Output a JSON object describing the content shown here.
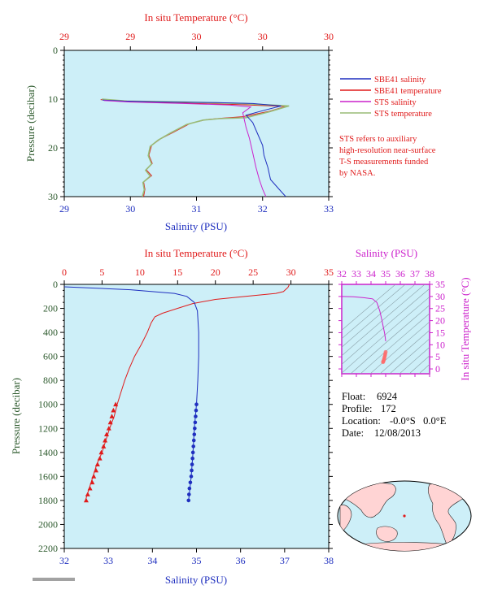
{
  "colors": {
    "salinity": "#1f2fbf",
    "temperature": "#e01b1b",
    "sts_salinity": "#cc22cc",
    "sts_temperature": "#99bb77",
    "pressure_axis": "#2d5a2d",
    "plot_bg": "#cdeff8",
    "magenta": "#cc22cc"
  },
  "chart_data": [
    {
      "type": "line",
      "title": "In situ Temperature (°C)",
      "xlabel": "Salinity (PSU)",
      "ylabel": "Pressure (decibar)",
      "top_xlabel": "In situ Temperature (°C)",
      "xlim": [
        29,
        33
      ],
      "ylim": [
        30,
        0
      ],
      "x_ticks": [
        "29",
        "30",
        "31",
        "32",
        "33"
      ],
      "top_ticks": [
        "29",
        "29",
        "30",
        "30",
        "30"
      ],
      "y_ticks": [
        "0",
        "10",
        "20",
        "30"
      ],
      "legend_position": "right",
      "series": [
        {
          "name": "SBE41 salinity",
          "points": [
            [
              29.58,
              10.2
            ],
            [
              29.9,
              10.4
            ],
            [
              30.6,
              10.6
            ],
            [
              31.3,
              10.7
            ],
            [
              31.85,
              10.9
            ],
            [
              32.28,
              11.4
            ],
            [
              32.05,
              12.2
            ],
            [
              31.75,
              13.3
            ],
            [
              31.85,
              14.8
            ],
            [
              31.92,
              17.0
            ],
            [
              32.0,
              19.5
            ],
            [
              32.02,
              21.5
            ],
            [
              32.08,
              24.0
            ],
            [
              32.12,
              26.5
            ],
            [
              32.25,
              28.5
            ],
            [
              32.35,
              30.0
            ]
          ]
        },
        {
          "name": "SBE41 temperature",
          "points": [
            [
              29.55,
              10.1
            ],
            [
              29.9,
              10.5
            ],
            [
              30.7,
              10.8
            ],
            [
              31.6,
              11.1
            ],
            [
              32.35,
              11.5
            ],
            [
              32.1,
              12.5
            ],
            [
              31.7,
              13.6
            ],
            [
              31.4,
              13.9
            ],
            [
              31.15,
              14.2
            ],
            [
              30.9,
              15.0
            ],
            [
              30.65,
              16.8
            ],
            [
              30.45,
              18.2
            ],
            [
              30.32,
              19.5
            ],
            [
              30.28,
              21.5
            ],
            [
              30.33,
              23.2
            ],
            [
              30.24,
              24.5
            ],
            [
              30.32,
              25.7
            ],
            [
              30.2,
              27.0
            ],
            [
              30.22,
              28.5
            ],
            [
              30.2,
              30.0
            ]
          ]
        },
        {
          "name": "STS salinity",
          "points": [
            [
              29.6,
              10.3
            ],
            [
              30.0,
              10.6
            ],
            [
              30.8,
              10.9
            ],
            [
              31.5,
              11.2
            ],
            [
              31.82,
              11.6
            ],
            [
              31.7,
              12.8
            ],
            [
              31.72,
              14.0
            ],
            [
              31.75,
              15.8
            ],
            [
              31.8,
              18.0
            ],
            [
              31.85,
              21.0
            ],
            [
              31.9,
              24.0
            ],
            [
              31.95,
              26.5
            ],
            [
              32.0,
              28.5
            ],
            [
              32.05,
              30.0
            ]
          ]
        },
        {
          "name": "STS temperature",
          "points": [
            [
              29.57,
              10.0
            ],
            [
              29.95,
              10.4
            ],
            [
              30.8,
              10.6
            ],
            [
              31.7,
              10.9
            ],
            [
              32.4,
              11.4
            ],
            [
              32.1,
              12.6
            ],
            [
              31.75,
              13.8
            ],
            [
              31.35,
              14.0
            ],
            [
              31.1,
              14.3
            ],
            [
              30.85,
              15.2
            ],
            [
              30.6,
              17.0
            ],
            [
              30.42,
              18.4
            ],
            [
              30.3,
              19.7
            ],
            [
              30.27,
              21.6
            ],
            [
              30.32,
              23.3
            ],
            [
              30.23,
              24.6
            ],
            [
              30.3,
              25.8
            ],
            [
              30.19,
              27.1
            ],
            [
              30.21,
              28.6
            ],
            [
              30.18,
              30.0
            ]
          ]
        }
      ],
      "note_lines": [
        "STS refers to auxiliary",
        "high-resolution near-surface",
        "T-S measurements funded",
        "by NASA."
      ]
    },
    {
      "type": "line",
      "title": "In situ Temperature (°C)",
      "xlabel": "Salinity (PSU)",
      "ylabel": "Pressure (decibar)",
      "top_xlabel": "In situ Temperature (°C)",
      "xlim": [
        32,
        38
      ],
      "top_xlim": [
        0,
        35
      ],
      "ylim": [
        2200,
        0
      ],
      "x_ticks": [
        "32",
        "33",
        "34",
        "35",
        "36",
        "37",
        "38"
      ],
      "top_ticks": [
        "0",
        "5",
        "10",
        "15",
        "20",
        "25",
        "30",
        "35"
      ],
      "y_ticks": [
        "0",
        "200",
        "400",
        "600",
        "800",
        "1000",
        "1200",
        "1400",
        "1600",
        "1800",
        "2000",
        "2200"
      ],
      "salinity_points": [
        [
          32.0,
          20
        ],
        [
          33.5,
          45
        ],
        [
          34.5,
          75
        ],
        [
          34.78,
          100
        ],
        [
          34.95,
          150
        ],
        [
          35.02,
          220
        ],
        [
          35.05,
          400
        ],
        [
          35.05,
          600
        ],
        [
          35.03,
          800
        ],
        [
          35.0,
          1000
        ],
        [
          34.95,
          1200
        ],
        [
          34.92,
          1400
        ],
        [
          34.88,
          1600
        ],
        [
          34.82,
          1800
        ]
      ],
      "salinity_markers": [
        [
          35.0,
          1000
        ],
        [
          34.99,
          1050
        ],
        [
          34.98,
          1100
        ],
        [
          34.97,
          1150
        ],
        [
          34.96,
          1200
        ],
        [
          34.95,
          1250
        ],
        [
          34.94,
          1300
        ],
        [
          34.93,
          1350
        ],
        [
          34.92,
          1400
        ],
        [
          34.91,
          1450
        ],
        [
          34.9,
          1500
        ],
        [
          34.89,
          1550
        ],
        [
          34.88,
          1600
        ],
        [
          34.86,
          1650
        ],
        [
          34.84,
          1700
        ],
        [
          34.83,
          1750
        ],
        [
          34.82,
          1800
        ]
      ],
      "temperature_points": [
        [
          29.8,
          0
        ],
        [
          29.6,
          25
        ],
        [
          29.0,
          60
        ],
        [
          28.0,
          75
        ],
        [
          24.0,
          100
        ],
        [
          20.0,
          125
        ],
        [
          17.0,
          160
        ],
        [
          15.0,
          200
        ],
        [
          13.0,
          240
        ],
        [
          12.0,
          270
        ],
        [
          11.5,
          320
        ],
        [
          11.0,
          400
        ],
        [
          10.2,
          500
        ],
        [
          9.3,
          600
        ],
        [
          8.6,
          700
        ],
        [
          8.0,
          800
        ],
        [
          7.5,
          900
        ],
        [
          7.0,
          1000
        ],
        [
          6.6,
          1100
        ],
        [
          6.0,
          1200
        ],
        [
          5.5,
          1300
        ],
        [
          5.0,
          1400
        ],
        [
          4.3,
          1500
        ],
        [
          3.8,
          1600
        ],
        [
          3.3,
          1700
        ],
        [
          2.8,
          1800
        ]
      ],
      "temperature_markers": [
        [
          6.8,
          1000
        ],
        [
          6.5,
          1050
        ],
        [
          6.3,
          1100
        ],
        [
          6.1,
          1150
        ],
        [
          5.9,
          1200
        ],
        [
          5.6,
          1250
        ],
        [
          5.4,
          1300
        ],
        [
          5.2,
          1350
        ],
        [
          4.9,
          1400
        ],
        [
          4.7,
          1450
        ],
        [
          4.4,
          1500
        ],
        [
          4.2,
          1550
        ],
        [
          3.9,
          1600
        ],
        [
          3.7,
          1650
        ],
        [
          3.4,
          1700
        ],
        [
          3.1,
          1750
        ],
        [
          2.9,
          1800
        ]
      ]
    },
    {
      "type": "scatter",
      "title": "Salinity (PSU)",
      "ylabel": "In situ Temperature (°C)",
      "xlim": [
        32,
        38
      ],
      "ylim": [
        -2,
        35
      ],
      "x_ticks": [
        "32",
        "33",
        "34",
        "35",
        "36",
        "37",
        "38"
      ],
      "y_ticks": [
        "0",
        "5",
        "10",
        "15",
        "20",
        "25",
        "30",
        "35"
      ],
      "ts_curve": [
        [
          32.0,
          30.0
        ],
        [
          32.8,
          29.9
        ],
        [
          33.5,
          29.5
        ],
        [
          34.1,
          29.0
        ],
        [
          34.4,
          27.5
        ],
        [
          34.6,
          24.0
        ],
        [
          34.75,
          20.0
        ],
        [
          34.85,
          17.0
        ],
        [
          34.92,
          15.0
        ],
        [
          34.97,
          13.0
        ],
        [
          35.0,
          11.5
        ]
      ],
      "ts_markers": [
        [
          35.0,
          7.0
        ],
        [
          34.97,
          6.2
        ],
        [
          34.95,
          5.5
        ],
        [
          34.92,
          4.8
        ],
        [
          34.9,
          4.2
        ],
        [
          34.87,
          3.6
        ],
        [
          34.84,
          3.1
        ],
        [
          34.82,
          2.8
        ]
      ]
    }
  ],
  "info": {
    "float_label": "Float:",
    "float_value": "6924",
    "profile_label": "Profile:",
    "profile_value": "172",
    "location_label": "Location:",
    "location_value": "-0.0°S   0.0°E",
    "date_label": "Date:",
    "date_value": "12/08/2013"
  }
}
